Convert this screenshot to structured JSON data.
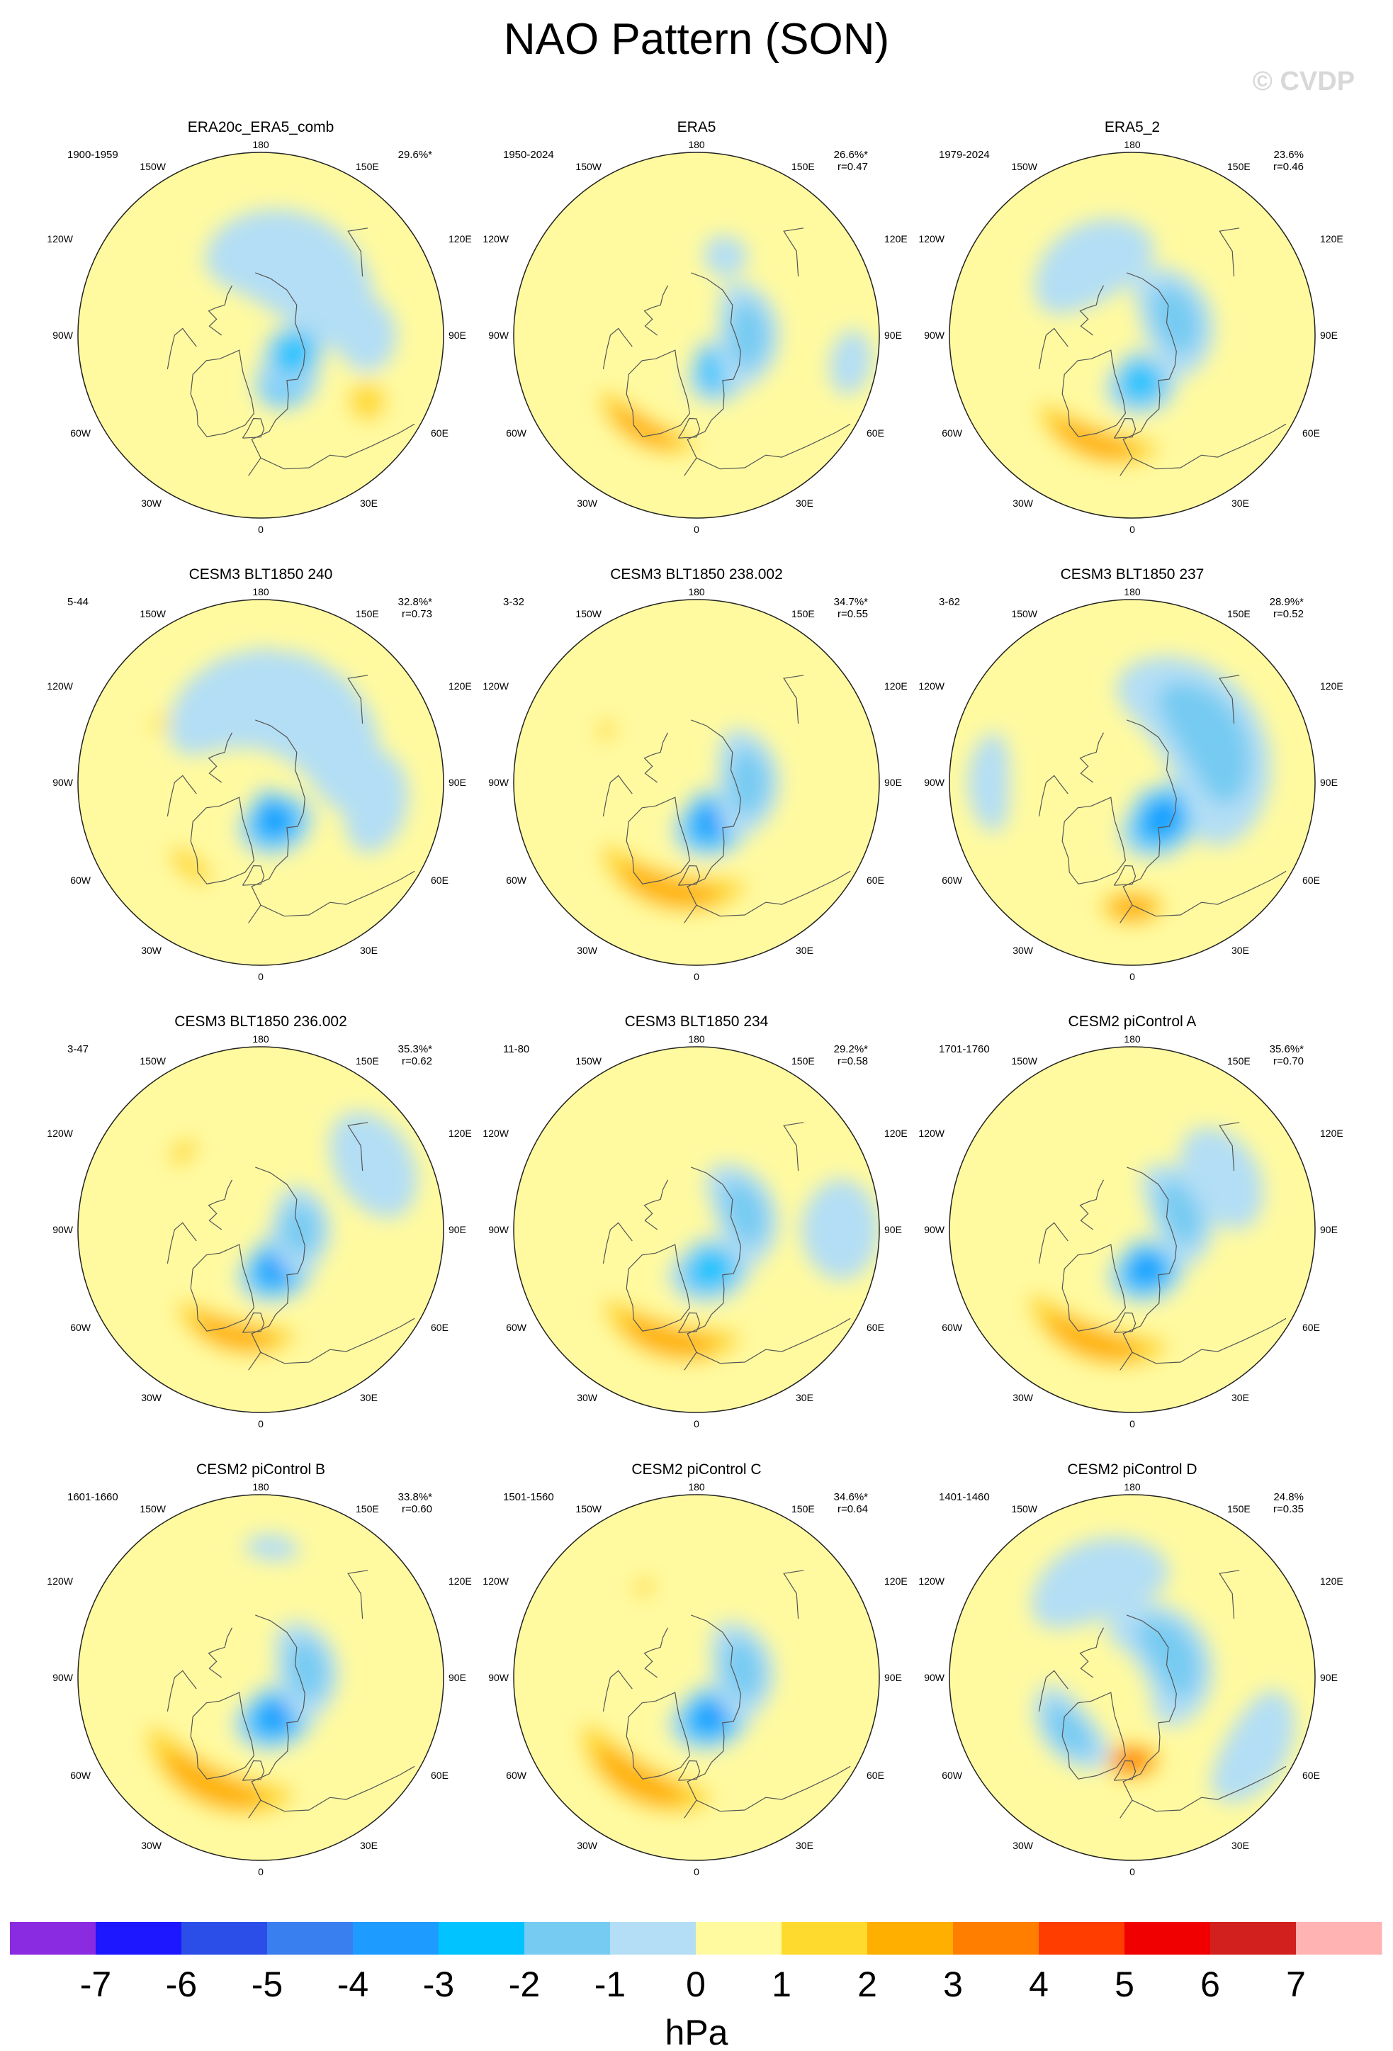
{
  "title": "NAO Pattern (SON)",
  "watermark": "© CVDP",
  "colors": {
    "land_outline": "#555555",
    "circle_stroke": "#222222",
    "levels": [
      "#8a2be2",
      "#1c17ff",
      "#2b4ee8",
      "#3a7ff0",
      "#1e9bff",
      "#00c3ff",
      "#76cbf2",
      "#b3def5",
      "#fffaa0",
      "#ffda2e",
      "#ffaf00",
      "#ff7e00",
      "#ff3d00",
      "#f00000",
      "#d2201f",
      "#ffb3b3"
    ]
  },
  "longitude_labels": {
    "top": "180",
    "bottom": "0",
    "upper_left": "150W",
    "upper_right": "150E",
    "left_upper": "120W",
    "right_upper": "120E",
    "left_mid": "90W",
    "right_mid": "90E",
    "left_lower": "60W",
    "right_lower": "60E",
    "lower_left": "30W",
    "lower_right": "30E"
  },
  "chart_data": {
    "type": "contour",
    "projection": "north-polar-stereographic",
    "variable": "NAO pattern (sea level pressure regression)",
    "season": "SON",
    "panels": [
      {
        "title": "ERA20c_ERA5_comb",
        "period": "1900-1959",
        "pct": "29.6%*",
        "r": "",
        "blobs": [
          {
            "lon": 30,
            "lat": 72,
            "val": -3.2,
            "rlon": 38,
            "rlat": 13
          },
          {
            "lon": 60,
            "lat": 76,
            "val": -2.5,
            "rlon": 55,
            "rlat": 12
          },
          {
            "lon": 150,
            "lat": 60,
            "val": -0.8,
            "rlon": 70,
            "rlat": 20
          },
          {
            "lon": 90,
            "lat": 50,
            "val": -0.7,
            "rlon": 20,
            "rlat": 12
          },
          {
            "lon": 58,
            "lat": 42,
            "val": 1.1,
            "rlon": 14,
            "rlat": 12
          }
        ]
      },
      {
        "title": "ERA5",
        "period": "1950-2024",
        "pct": "26.6%*",
        "r": "r=0.47",
        "blobs": [
          {
            "lon": 30,
            "lat": 75,
            "val": -2.8,
            "rlon": 42,
            "rlat": 13
          },
          {
            "lon": 90,
            "lat": 70,
            "val": -1.2,
            "rlon": 60,
            "rlat": 12
          },
          {
            "lon": 330,
            "lat": 48,
            "val": 2.2,
            "rlon": 40,
            "rlat": 8
          },
          {
            "lon": 160,
            "lat": 58,
            "val": -0.6,
            "rlon": 15,
            "rlat": 8
          },
          {
            "lon": 80,
            "lat": 30,
            "val": -0.6,
            "rlon": 12,
            "rlat": 8
          }
        ]
      },
      {
        "title": "ERA5_2",
        "period": "1979-2024",
        "pct": "23.6%",
        "r": "r=0.46",
        "blobs": [
          {
            "lon": 10,
            "lat": 72,
            "val": -2.6,
            "rlon": 40,
            "rlat": 13
          },
          {
            "lon": 110,
            "lat": 72,
            "val": -1.0,
            "rlon": 70,
            "rlat": 14
          },
          {
            "lon": 340,
            "lat": 46,
            "val": 2.0,
            "rlon": 45,
            "rlat": 9
          },
          {
            "lon": 210,
            "lat": 58,
            "val": -0.7,
            "rlon": 45,
            "rlat": 15
          }
        ]
      },
      {
        "title": "CESM3 BLT1850 240",
        "period": "5-44",
        "pct": "32.8%*",
        "r": "r=0.73",
        "blobs": [
          {
            "lon": 20,
            "lat": 75,
            "val": -3.6,
            "rlon": 50,
            "rlat": 14
          },
          {
            "lon": 160,
            "lat": 58,
            "val": -0.9,
            "rlon": 90,
            "rlat": 20
          },
          {
            "lon": 80,
            "lat": 45,
            "val": -0.8,
            "rlon": 25,
            "rlat": 12
          },
          {
            "lon": 320,
            "lat": 48,
            "val": 1.6,
            "rlon": 22,
            "rlat": 7
          },
          {
            "lon": 240,
            "lat": 45,
            "val": 1.2,
            "rlon": 8,
            "rlat": 4
          }
        ]
      },
      {
        "title": "CESM3 BLT1850 238.002",
        "period": "3-32",
        "pct": "34.7%*",
        "r": "r=0.55",
        "blobs": [
          {
            "lon": 20,
            "lat": 74,
            "val": -3.0,
            "rlon": 50,
            "rlat": 14
          },
          {
            "lon": 90,
            "lat": 70,
            "val": -1.4,
            "rlon": 60,
            "rlat": 12
          },
          {
            "lon": 345,
            "lat": 47,
            "val": 2.5,
            "rlon": 55,
            "rlat": 10
          },
          {
            "lon": 240,
            "lat": 50,
            "val": 1.5,
            "rlon": 10,
            "rlat": 5
          }
        ]
      },
      {
        "title": "CESM3 BLT1850 237",
        "period": "3-62",
        "pct": "28.9%*",
        "r": "r=0.52",
        "blobs": [
          {
            "lon": 40,
            "lat": 72,
            "val": -3.3,
            "rlon": 55,
            "rlat": 14
          },
          {
            "lon": 120,
            "lat": 55,
            "val": -1.0,
            "rlon": 70,
            "rlat": 20
          },
          {
            "lon": 0,
            "lat": 42,
            "val": 2.2,
            "rlon": 20,
            "rlat": 9
          },
          {
            "lon": 270,
            "lat": 35,
            "val": -0.6,
            "rlon": 20,
            "rlat": 8
          }
        ]
      },
      {
        "title": "CESM3 BLT1850 236.002",
        "period": "3-47",
        "pct": "35.3%*",
        "r": "r=0.62",
        "blobs": [
          {
            "lon": 20,
            "lat": 74,
            "val": -3.0,
            "rlon": 50,
            "rlat": 13
          },
          {
            "lon": 90,
            "lat": 75,
            "val": -1.4,
            "rlon": 60,
            "rlat": 12
          },
          {
            "lon": 345,
            "lat": 48,
            "val": 2.4,
            "rlon": 45,
            "rlat": 9
          },
          {
            "lon": 225,
            "lat": 48,
            "val": 1.5,
            "rlon": 14,
            "rlat": 6
          },
          {
            "lon": 120,
            "lat": 40,
            "val": -0.8,
            "rlon": 25,
            "rlat": 15
          }
        ]
      },
      {
        "title": "CESM3 BLT1850 234",
        "period": "11-80",
        "pct": "29.2%*",
        "r": "r=0.58",
        "blobs": [
          {
            "lon": 20,
            "lat": 74,
            "val": -2.9,
            "rlon": 55,
            "rlat": 13
          },
          {
            "lon": 110,
            "lat": 70,
            "val": -1.3,
            "rlon": 60,
            "rlat": 12
          },
          {
            "lon": 345,
            "lat": 46,
            "val": 2.2,
            "rlon": 50,
            "rlat": 10
          },
          {
            "lon": 90,
            "lat": 35,
            "val": -0.7,
            "rlon": 20,
            "rlat": 15
          }
        ]
      },
      {
        "title": "CESM2 piControl A",
        "period": "1701-1760",
        "pct": "35.6%*",
        "r": "r=0.70",
        "blobs": [
          {
            "lon": 20,
            "lat": 74,
            "val": -3.4,
            "rlon": 50,
            "rlat": 13
          },
          {
            "lon": 110,
            "lat": 70,
            "val": -1.3,
            "rlon": 60,
            "rlat": 12
          },
          {
            "lon": 340,
            "lat": 44,
            "val": 2.4,
            "rlon": 50,
            "rlat": 10
          },
          {
            "lon": 120,
            "lat": 50,
            "val": -0.8,
            "rlon": 30,
            "rlat": 14
          }
        ]
      },
      {
        "title": "CESM2 piControl B",
        "period": "1601-1660",
        "pct": "33.8%*",
        "r": "r=0.60",
        "blobs": [
          {
            "lon": 20,
            "lat": 74,
            "val": -3.3,
            "rlon": 55,
            "rlat": 13
          },
          {
            "lon": 100,
            "lat": 72,
            "val": -1.4,
            "rlon": 60,
            "rlat": 12
          },
          {
            "lon": 335,
            "lat": 44,
            "val": 2.3,
            "rlon": 55,
            "rlat": 11
          },
          {
            "lon": 175,
            "lat": 40,
            "val": -0.7,
            "rlon": 12,
            "rlat": 5
          }
        ]
      },
      {
        "title": "CESM2 piControl C",
        "period": "1501-1560",
        "pct": "34.6%*",
        "r": "r=0.64",
        "blobs": [
          {
            "lon": 20,
            "lat": 74,
            "val": -3.3,
            "rlon": 55,
            "rlat": 13
          },
          {
            "lon": 100,
            "lat": 72,
            "val": -1.5,
            "rlon": 60,
            "rlat": 12
          },
          {
            "lon": 330,
            "lat": 44,
            "val": 2.0,
            "rlon": 50,
            "rlat": 11
          },
          {
            "lon": 210,
            "lat": 50,
            "val": 1.3,
            "rlon": 10,
            "rlat": 5
          }
        ]
      },
      {
        "title": "CESM2 piControl D",
        "period": "1401-1460",
        "pct": "24.8%",
        "r": "r=0.35",
        "blobs": [
          {
            "lon": 0,
            "lat": 58,
            "val": 3.4,
            "rlon": 25,
            "rlat": 9
          },
          {
            "lon": 120,
            "lat": 72,
            "val": -1.8,
            "rlon": 90,
            "rlat": 14
          },
          {
            "lon": 310,
            "lat": 58,
            "val": -1.3,
            "rlon": 35,
            "rlat": 10
          },
          {
            "lon": 200,
            "lat": 50,
            "val": -0.8,
            "rlon": 40,
            "rlat": 15
          },
          {
            "lon": 60,
            "lat": 35,
            "val": -0.8,
            "rlon": 25,
            "rlat": 12
          }
        ]
      }
    ],
    "colorbar": {
      "levels": [
        -7,
        -6,
        -5,
        -4,
        -3,
        -2,
        -1,
        0,
        1,
        2,
        3,
        4,
        5,
        6,
        7
      ],
      "tick_labels": [
        "-7",
        "-6",
        "-5",
        "-4",
        "-3",
        "-2",
        "-1",
        "0",
        "1",
        "2",
        "3",
        "4",
        "5",
        "6",
        "7"
      ],
      "units": "hPa"
    }
  }
}
